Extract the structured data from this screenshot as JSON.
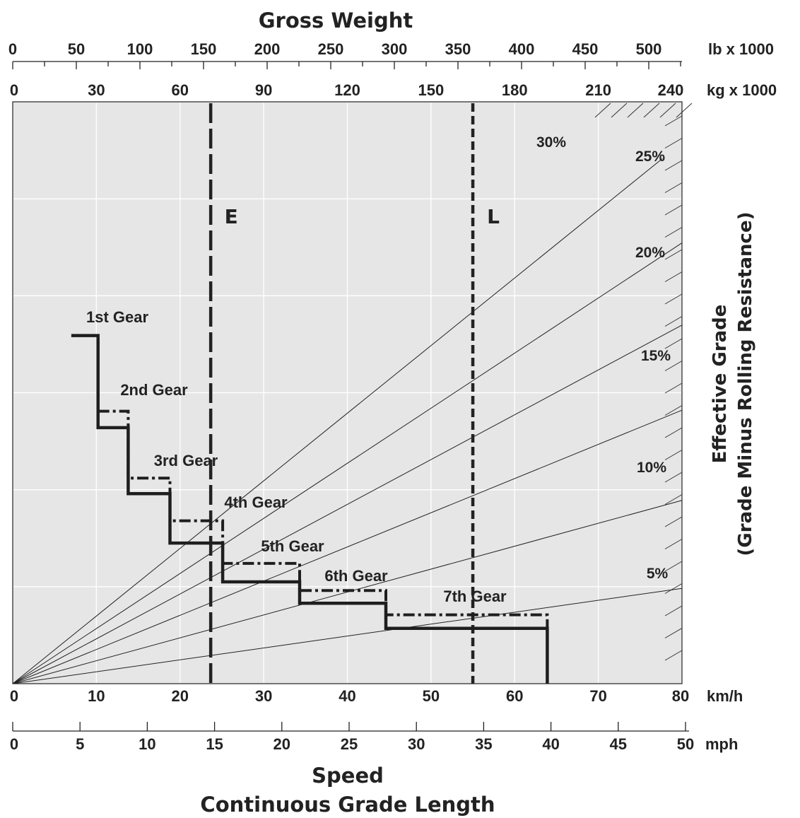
{
  "chart_data": {
    "type": "line",
    "title": "Gross Weight",
    "xlabel": "Speed",
    "xlabel2": "Continuous Grade Length",
    "ylabel": "Effective Grade",
    "ylabel2": "(Grade Minus Rolling Resistance)",
    "axes": {
      "kmh": {
        "unit": "km/h",
        "range": [
          0,
          80
        ],
        "ticks": [
          0,
          10,
          20,
          30,
          40,
          50,
          60,
          70,
          80
        ]
      },
      "mph": {
        "unit": "mph",
        "range": [
          0,
          50
        ],
        "ticks": [
          0,
          5,
          10,
          15,
          20,
          25,
          30,
          35,
          40,
          45,
          50
        ]
      },
      "lb": {
        "unit": "lb x 1000",
        "range": [
          0,
          525
        ],
        "ticks": [
          0,
          50,
          100,
          150,
          200,
          250,
          300,
          350,
          400,
          450,
          500
        ]
      },
      "kg": {
        "unit": "kg x 1000",
        "range": [
          0,
          240
        ],
        "ticks": [
          0,
          30,
          60,
          90,
          120,
          150,
          180,
          210,
          240
        ]
      }
    },
    "grid": true,
    "grade_lines": [
      {
        "label": "5%",
        "end_kg": 240,
        "end_kmh": 13.1
      },
      {
        "label": "10%",
        "end_kg": 240,
        "end_kmh": 25.2
      },
      {
        "label": "15%",
        "end_kg": 240,
        "end_kmh": 37.6
      },
      {
        "label": "20%",
        "end_kg": 240,
        "end_kmh": 49.3
      },
      {
        "label": "25%",
        "end_kg": 240,
        "end_kmh": 60.6
      },
      {
        "label": "30%",
        "end_kg": 233,
        "end_kmh": 72.2
      }
    ],
    "weight_markers": [
      {
        "label": "E",
        "kg": 71
      },
      {
        "label": "L",
        "kg": 165
      }
    ],
    "gear_labels": [
      "1st Gear",
      "2nd Gear",
      "3rd Gear",
      "4th Gear",
      "5th Gear",
      "6th Gear",
      "7th Gear"
    ],
    "series": [
      {
        "style": "solid",
        "points": [
          [
            7,
            35.9
          ],
          [
            10.2,
            35.9
          ],
          [
            10.2,
            26.4
          ],
          [
            13.8,
            26.4
          ],
          [
            13.8,
            19.6
          ],
          [
            18.8,
            19.6
          ],
          [
            18.8,
            14.5
          ],
          [
            25.1,
            14.5
          ],
          [
            25.1,
            10.5
          ],
          [
            34.3,
            10.5
          ],
          [
            34.3,
            8.3
          ],
          [
            44.6,
            8.3
          ],
          [
            44.6,
            5.7
          ],
          [
            63.9,
            5.7
          ],
          [
            63.9,
            0
          ]
        ]
      },
      {
        "style": "dash-dot",
        "points": [
          [
            10.2,
            28.1
          ],
          [
            13.8,
            28.1
          ],
          [
            13.8,
            26.4
          ],
          [
            13.8,
            21.2
          ],
          [
            18.8,
            21.2
          ],
          [
            18.8,
            19.6
          ],
          [
            18.8,
            16.8
          ],
          [
            25.1,
            16.8
          ],
          [
            25.1,
            14.5
          ],
          [
            25.1,
            12.4
          ],
          [
            34.3,
            12.4
          ],
          [
            34.3,
            10.5
          ],
          [
            34.3,
            9.6
          ],
          [
            44.6,
            9.6
          ],
          [
            44.6,
            8.3
          ],
          [
            44.6,
            7.1
          ],
          [
            63.9,
            7.1
          ],
          [
            63.9,
            5.7
          ]
        ]
      }
    ]
  }
}
